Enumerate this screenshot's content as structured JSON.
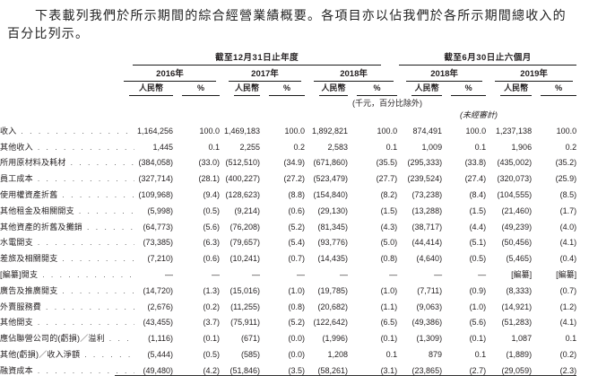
{
  "colors": {
    "text": "#231f20",
    "rule_line": "#1a1a1a"
  },
  "intro": "下表載列我們於所示期間的綜合經營業績概要。各項目亦以佔我們於各所示期間總收入的\n百分比列示。",
  "table": {
    "col_groups": [
      {
        "label": "截至12月31日止年度",
        "years": [
          "2016年",
          "2017年",
          "2018年"
        ]
      },
      {
        "label": "截至6月30日止六個月",
        "years": [
          "2018年",
          "2019年"
        ]
      }
    ],
    "currency_header": "人民幣",
    "percent_header": "%",
    "unit_note": "(千元，百分比除外)",
    "unaudited_note": "(未經審計)",
    "rows": [
      {
        "label": "收入",
        "values": [
          "1,164,256",
          "100.0",
          "1,469,183",
          "100.0",
          "1,892,821",
          "100.0",
          "874,491",
          "100.0",
          "1,237,138",
          "100.0"
        ]
      },
      {
        "label": "其他收入",
        "values": [
          "1,445",
          "0.1",
          "2,255",
          "0.2",
          "2,583",
          "0.1",
          "1,009",
          "0.1",
          "1,906",
          "0.2"
        ]
      },
      {
        "label": "所用原材料及耗材",
        "values": [
          "(384,058)",
          "(33.0)",
          "(512,510)",
          "(34.9)",
          "(671,860)",
          "(35.5)",
          "(295,333)",
          "(33.8)",
          "(435,002)",
          "(35.2)"
        ]
      },
      {
        "label": "員工成本",
        "values": [
          "(327,714)",
          "(28.1)",
          "(400,227)",
          "(27.2)",
          "(523,479)",
          "(27.7)",
          "(239,524)",
          "(27.4)",
          "(320,073)",
          "(25.9)"
        ]
      },
      {
        "label": "使用權資產折舊",
        "values": [
          "(109,968)",
          "(9.4)",
          "(128,623)",
          "(8.8)",
          "(154,840)",
          "(8.2)",
          "(73,238)",
          "(8.4)",
          "(104,555)",
          "(8.5)"
        ]
      },
      {
        "label": "其他租金及相關開支",
        "values": [
          "(5,998)",
          "(0.5)",
          "(9,214)",
          "(0.6)",
          "(29,130)",
          "(1.5)",
          "(13,288)",
          "(1.5)",
          "(21,460)",
          "(1.7)"
        ]
      },
      {
        "label": "其他資產的折舊及攤銷",
        "values": [
          "(64,773)",
          "(5.6)",
          "(76,208)",
          "(5.2)",
          "(81,345)",
          "(4.3)",
          "(38,717)",
          "(4.4)",
          "(49,239)",
          "(4.0)"
        ]
      },
      {
        "label": "水電開支",
        "values": [
          "(73,385)",
          "(6.3)",
          "(79,657)",
          "(5.4)",
          "(93,776)",
          "(5.0)",
          "(44,414)",
          "(5.1)",
          "(50,456)",
          "(4.1)"
        ]
      },
      {
        "label": "差旅及相關開支",
        "values": [
          "(7,210)",
          "(0.6)",
          "(10,241)",
          "(0.7)",
          "(14,435)",
          "(0.8)",
          "(4,640)",
          "(0.5)",
          "(5,465)",
          "(0.4)"
        ]
      },
      {
        "label": "[編纂]開支",
        "values": [
          "—",
          "—",
          "—",
          "—",
          "—",
          "—",
          "—",
          "—",
          "[編纂]",
          "[編纂]"
        ]
      },
      {
        "label": "廣告及推廣開支",
        "values": [
          "(14,720)",
          "(1.3)",
          "(15,016)",
          "(1.0)",
          "(19,785)",
          "(1.0)",
          "(7,711)",
          "(0.9)",
          "(8,333)",
          "(0.7)"
        ]
      },
      {
        "label": "外賣服務費",
        "values": [
          "(2,676)",
          "(0.2)",
          "(11,255)",
          "(0.8)",
          "(20,682)",
          "(1.1)",
          "(9,063)",
          "(1.0)",
          "(14,921)",
          "(1.2)"
        ]
      },
      {
        "label": "其他開支",
        "values": [
          "(43,455)",
          "(3.7)",
          "(75,911)",
          "(5.2)",
          "(122,642)",
          "(6.5)",
          "(49,386)",
          "(5.6)",
          "(51,283)",
          "(4.1)"
        ]
      },
      {
        "label": "應佔聯營公司的(虧損)／溢利",
        "values": [
          "(1,116)",
          "(0.1)",
          "(671)",
          "(0.0)",
          "(1,996)",
          "(0.1)",
          "(1,309)",
          "(0.1)",
          "1,087",
          "0.1"
        ]
      },
      {
        "label": "其他(虧損)／收入淨額",
        "values": [
          "(5,444)",
          "(0.5)",
          "(585)",
          "(0.0)",
          "1,208",
          "0.1",
          "879",
          "0.1",
          "(1,889)",
          "(0.2)"
        ]
      },
      {
        "label": "融資成本",
        "values": [
          "(49,480)",
          "(4.2)",
          "(51,846)",
          "(3.5)",
          "(58,261)",
          "(3.1)",
          "(23,865)",
          "(2.7)",
          "(29,059)",
          "(2.3)"
        ],
        "underline": true
      }
    ]
  }
}
